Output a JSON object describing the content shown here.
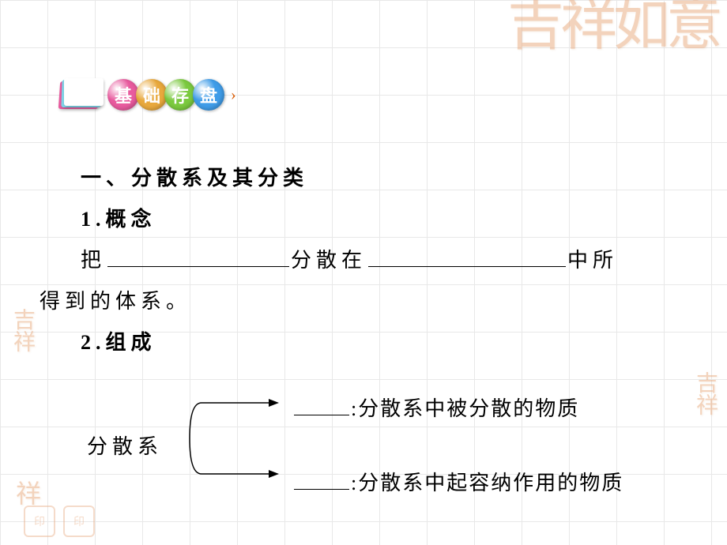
{
  "header": {
    "badges": [
      {
        "char": "基",
        "color": "#e85a9e"
      },
      {
        "char": "础",
        "color": "#e8a83c"
      },
      {
        "char": "存",
        "color": "#7bc93f"
      },
      {
        "char": "盘",
        "color": "#3f9ce8"
      }
    ]
  },
  "section_title": "一、分散系及其分类",
  "item1_title": "1.概念",
  "item1_line_part1": "把",
  "item1_line_part2": "分散在",
  "item1_line_part3": "中所",
  "item1_line_part4": "得到的体系。",
  "item2_title": "2.组成",
  "bracket_label": "分散系",
  "bracket_line1_suffix": ":分散系中被分散的物质",
  "bracket_line2_suffix": ":分散系中起容纳作用的物质",
  "decorative": {
    "top_right": "吉祥如意",
    "left_mid": "吉祥",
    "right_mid": "吉祥",
    "left_bot": "祥",
    "seal_text": "印"
  },
  "colors": {
    "grid": "#e8e8e8",
    "decorative_text": "#e8a87c",
    "background": "#ffffff",
    "text": "#000000",
    "chevron": "#d85a00"
  },
  "font_sizes": {
    "body": 26,
    "badge": 22,
    "decorative_large": 72,
    "decorative_small": 28
  }
}
